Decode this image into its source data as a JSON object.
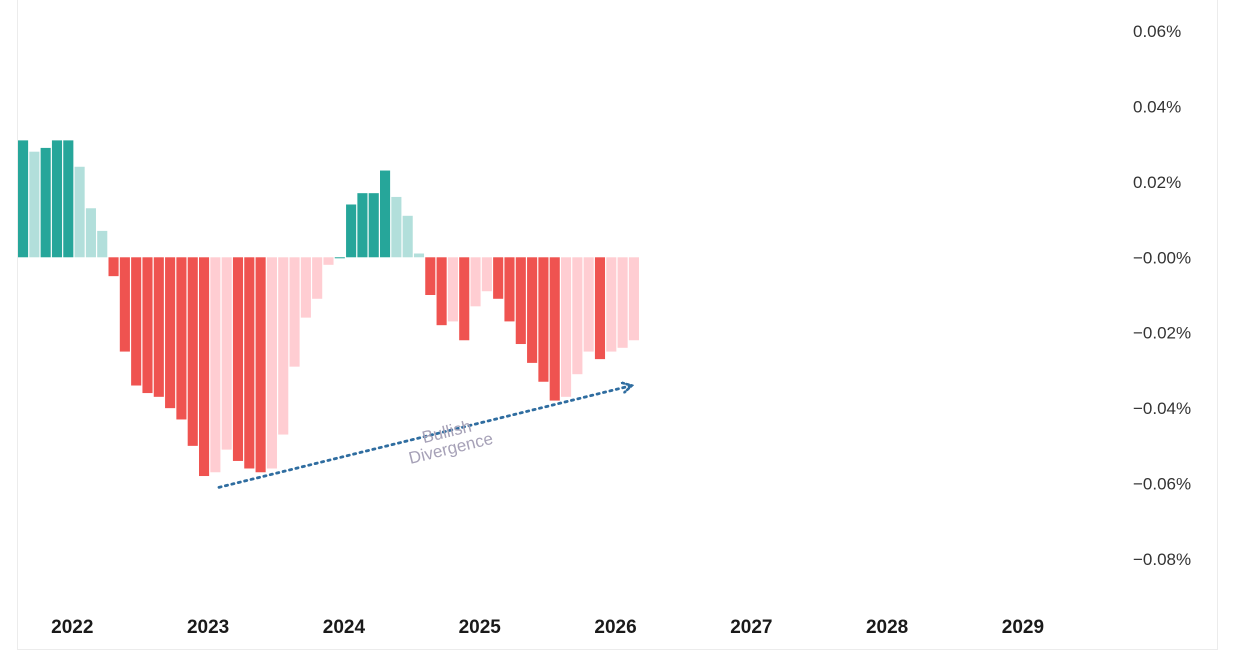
{
  "chart_data": {
    "type": "bar",
    "title": "",
    "xlabel": "",
    "ylabel": "",
    "ylim": [
      -0.09,
      0.06
    ],
    "y_ticks": [
      0.06,
      0.04,
      0.02,
      -0.0,
      -0.02,
      -0.04,
      -0.06,
      -0.08
    ],
    "y_tick_labels": [
      "0.06%",
      "0.04%",
      "0.02%",
      "−0.00%",
      "−0.02%",
      "−0.04%",
      "−0.06%",
      "−0.08%"
    ],
    "x_tick_labels": [
      "2022",
      "2023",
      "2024",
      "2025",
      "2026",
      "2027",
      "2028",
      "2029"
    ],
    "x_ticks": [
      2022,
      2023,
      2024,
      2025,
      2026,
      2027,
      2028,
      2029
    ],
    "xlim": [
      2021.6,
      2029.7
    ],
    "grid": false,
    "colors": {
      "positive_rising": "#26a69a",
      "positive_falling": "#b2dfdb",
      "negative_falling": "#ef5350",
      "negative_rising": "#ffcdd2",
      "arrow": "#2f6da0",
      "annotation": "#a6a1b7"
    },
    "series": [
      {
        "values": [
          0.031,
          0.028,
          0.029,
          0.031,
          0.031,
          0.024,
          0.013,
          0.007,
          -0.005,
          -0.025,
          -0.034,
          -0.036,
          -0.037,
          -0.04,
          -0.043,
          -0.05,
          -0.058,
          -0.057,
          -0.051,
          -0.054,
          -0.056,
          -0.057,
          -0.056,
          -0.047,
          -0.029,
          -0.016,
          -0.011,
          -0.002,
          0.0,
          0.014,
          0.017,
          0.017,
          0.023,
          0.016,
          0.011,
          0.001,
          -0.01,
          -0.018,
          -0.017,
          -0.022,
          -0.013,
          -0.009,
          -0.011,
          -0.017,
          -0.023,
          -0.028,
          -0.033,
          -0.038,
          -0.037,
          -0.031,
          -0.025,
          -0.027,
          -0.025,
          -0.024,
          -0.022
        ],
        "x_start": 2021.6,
        "x_step": 0.0833
      }
    ],
    "annotations": [
      {
        "text": [
          "Bullish",
          "Divergence"
        ],
        "from": [
          2023.08,
          -0.061
        ],
        "to": [
          2026.12,
          -0.034
        ]
      }
    ]
  }
}
